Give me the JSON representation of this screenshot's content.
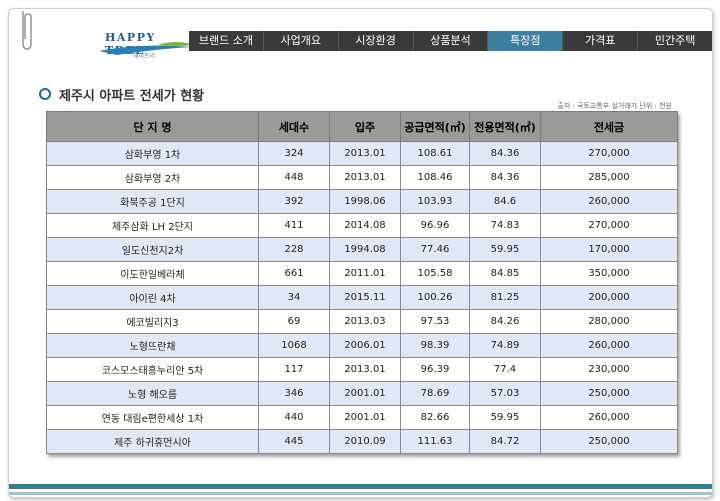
{
  "logo": {
    "name": "HAPPY TREE",
    "sub": "해피트리"
  },
  "nav": {
    "items": [
      "브랜드 소개",
      "사업개요",
      "시장환경",
      "상품분석",
      "특장점",
      "가격표",
      "민간주택"
    ],
    "active_index": 4
  },
  "page": {
    "title": "제주시 아파트 전세가 현황",
    "source": "출처 : 국토교통부 실거래가  단위 : 천원"
  },
  "table": {
    "headers": [
      "단 지 명",
      "세대수",
      "입주",
      "공급면적(㎡)",
      "전용면적(㎡)",
      "전세금"
    ],
    "rows": [
      [
        "삼화부영 1차",
        "324",
        "2013.01",
        "108.61",
        "84.36",
        "270,000"
      ],
      [
        "삼화부영 2차",
        "448",
        "2013.01",
        "108.46",
        "84.36",
        "285,000"
      ],
      [
        "화북주공 1단지",
        "392",
        "1998.06",
        "103.93",
        "84.6",
        "260,000"
      ],
      [
        "제주삼화 LH 2단지",
        "411",
        "2014.08",
        "96.96",
        "74.83",
        "270,000"
      ],
      [
        "일도신천지2차",
        "228",
        "1994.08",
        "77.46",
        "59.95",
        "170,000"
      ],
      [
        "이도한일베라체",
        "661",
        "2011.01",
        "105.58",
        "84.85",
        "350,000"
      ],
      [
        "아이린 4차",
        "34",
        "2015.11",
        "100.26",
        "81.25",
        "200,000"
      ],
      [
        "에코빌리지3",
        "69",
        "2013.03",
        "97.53",
        "84.26",
        "280,000"
      ],
      [
        "노형뜨란채",
        "1068",
        "2006.01",
        "98.39",
        "74.89",
        "260,000"
      ],
      [
        "코스모스태흥누리안 5차",
        "117",
        "2013.01",
        "96.39",
        "77.4",
        "230,000"
      ],
      [
        "노형 해오름",
        "346",
        "2001.01",
        "78.69",
        "57.03",
        "250,000"
      ],
      [
        "연동 대림e편한세상 1차",
        "440",
        "2001.01",
        "82.66",
        "59.95",
        "260,000"
      ],
      [
        "제주 하귀휴먼시아",
        "445",
        "2010.09",
        "111.63",
        "84.72",
        "250,000"
      ]
    ]
  },
  "colors": {
    "nav_bg": "#3a3a3a",
    "nav_active": "#3c7f9e",
    "header_bg": "#9a9a9a",
    "row_alt": "#dfe9f5",
    "accent": "#2f7e93"
  }
}
